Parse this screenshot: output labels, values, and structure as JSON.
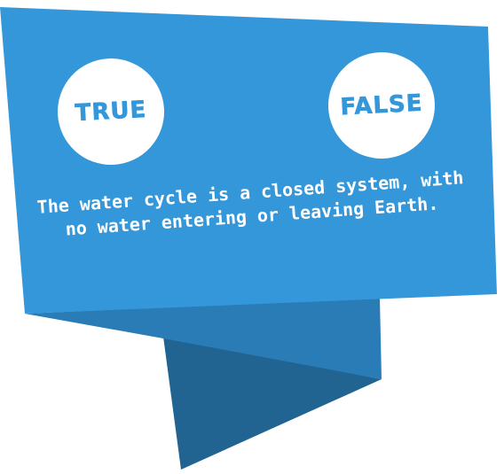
{
  "question": {
    "text": "The water cycle is a closed system, with no water entering or leaving Earth."
  },
  "answers": {
    "true_label": "TRUE",
    "false_label": "FALSE"
  },
  "colors": {
    "banner_main": "#3497d9",
    "banner_fold_mid": "#2a7cb6",
    "banner_fold_dark": "#216491",
    "button_bg": "#ffffff",
    "button_text": "#3497d9",
    "question_text": "#ffffff"
  }
}
